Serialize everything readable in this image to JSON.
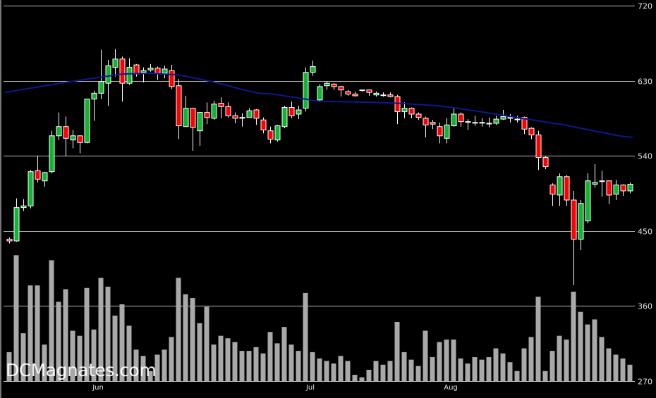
{
  "watermark": "DCMagnates.com",
  "colors": {
    "background": "#000000",
    "up": "#10b530",
    "down": "#ff0000",
    "wick": "#ffffff",
    "ma_line": "#0a1a8c",
    "volume": "#a9a9a9",
    "grid": "#bdbdbd"
  },
  "chart_data": {
    "type": "candlestick",
    "title": "",
    "ylim": [
      270,
      720
    ],
    "y_ticks": [
      720,
      630,
      540,
      450,
      360,
      270
    ],
    "y_axis_position": "right",
    "grid": true,
    "x_ticks": [
      "Jun",
      "Jul",
      "Aug"
    ],
    "ohlc": [
      [
        440,
        442,
        435,
        438
      ],
      [
        438,
        489,
        437,
        478
      ],
      [
        478,
        488,
        474,
        480
      ],
      [
        480,
        523,
        477,
        521
      ],
      [
        522,
        540,
        508,
        512
      ],
      [
        510,
        521,
        503,
        520
      ],
      [
        521,
        570,
        519,
        564
      ],
      [
        564,
        592,
        559,
        575
      ],
      [
        575,
        587,
        540,
        561
      ],
      [
        559,
        571,
        549,
        564
      ],
      [
        564,
        564,
        543,
        556
      ],
      [
        556,
        608,
        555,
        608
      ],
      [
        608,
        618,
        582,
        615
      ],
      [
        615,
        667,
        608,
        629
      ],
      [
        627,
        655,
        600,
        648
      ],
      [
        646,
        668,
        635,
        656
      ],
      [
        656,
        659,
        605,
        627
      ],
      [
        627,
        657,
        625,
        646
      ],
      [
        649,
        650,
        635,
        638
      ],
      [
        640,
        646,
        628,
        642
      ],
      [
        643,
        650,
        641,
        645
      ],
      [
        645,
        647,
        631,
        639
      ],
      [
        639,
        648,
        633,
        644
      ],
      [
        642,
        649,
        620,
        623
      ],
      [
        624,
        632,
        560,
        576
      ],
      [
        575,
        612,
        575,
        597
      ],
      [
        597,
        597,
        546,
        574
      ],
      [
        570,
        592,
        552,
        592
      ],
      [
        592,
        604,
        578,
        586
      ],
      [
        585,
        606,
        583,
        602
      ],
      [
        603,
        610,
        585,
        599
      ],
      [
        599,
        604,
        586,
        588
      ],
      [
        588,
        592,
        579,
        585
      ],
      [
        585,
        591,
        575,
        586
      ],
      [
        586,
        597,
        586,
        594
      ],
      [
        595,
        596,
        577,
        585
      ],
      [
        583,
        586,
        567,
        571
      ],
      [
        570,
        575,
        555,
        560
      ],
      [
        559,
        577,
        557,
        576
      ],
      [
        575,
        600,
        573,
        598
      ],
      [
        598,
        605,
        585,
        588
      ],
      [
        590,
        600,
        584,
        595
      ],
      [
        597,
        646,
        593,
        640
      ],
      [
        640,
        654,
        636,
        647
      ],
      [
        607,
        626,
        606,
        623
      ],
      [
        624,
        629,
        619,
        627
      ],
      [
        626,
        627,
        619,
        623
      ],
      [
        623,
        624,
        611,
        619
      ],
      [
        617,
        619,
        612,
        614
      ],
      [
        614,
        617,
        611,
        612
      ],
      [
        619,
        619,
        617,
        619
      ],
      [
        619,
        619,
        612,
        616
      ],
      [
        613,
        617,
        611,
        615
      ],
      [
        613,
        616,
        611,
        613
      ],
      [
        613,
        616,
        610,
        611
      ],
      [
        611,
        613,
        578,
        593
      ],
      [
        593,
        604,
        585,
        597
      ],
      [
        597,
        598,
        585,
        590
      ],
      [
        590,
        592,
        583,
        586
      ],
      [
        585,
        587,
        562,
        577
      ],
      [
        580,
        583,
        572,
        578
      ],
      [
        575,
        580,
        555,
        564
      ],
      [
        561,
        585,
        555,
        577
      ],
      [
        576,
        598,
        575,
        590
      ],
      [
        590,
        592,
        575,
        581
      ],
      [
        581,
        584,
        571,
        581
      ],
      [
        580,
        588,
        576,
        580
      ],
      [
        580,
        585,
        575,
        580
      ],
      [
        579,
        586,
        574,
        579
      ],
      [
        579,
        588,
        577,
        584
      ],
      [
        584,
        595,
        583,
        587
      ],
      [
        586,
        590,
        580,
        585
      ],
      [
        584,
        588,
        580,
        584
      ],
      [
        586,
        587,
        566,
        572
      ],
      [
        573,
        574,
        560,
        565
      ],
      [
        565,
        570,
        523,
        538
      ],
      [
        538,
        540,
        524,
        527
      ],
      [
        505,
        507,
        480,
        494
      ],
      [
        493,
        519,
        480,
        515
      ],
      [
        515,
        517,
        480,
        487
      ],
      [
        487,
        498,
        385,
        440
      ],
      [
        440,
        487,
        427,
        483
      ],
      [
        462,
        519,
        459,
        510
      ],
      [
        506,
        530,
        502,
        508
      ],
      [
        510,
        522,
        491,
        510
      ],
      [
        510,
        510,
        482,
        493
      ],
      [
        494,
        511,
        487,
        505
      ],
      [
        505,
        506,
        492,
        498
      ],
      [
        498,
        508,
        495,
        506
      ]
    ],
    "moving_average": {
      "points": [
        [
          -0.6,
          616
        ],
        [
          8.7,
          629
        ],
        [
          16,
          638
        ],
        [
          20,
          639
        ],
        [
          24,
          637
        ],
        [
          28.7,
          629
        ],
        [
          30.7,
          625
        ],
        [
          32.7,
          620
        ],
        [
          35.4,
          615
        ],
        [
          37.4,
          614
        ],
        [
          42,
          608
        ],
        [
          44,
          605
        ],
        [
          46.7,
          605
        ],
        [
          52,
          604
        ],
        [
          55.4,
          603
        ],
        [
          60.7,
          600
        ],
        [
          62.7,
          598
        ],
        [
          66.7,
          593
        ],
        [
          72,
          586
        ],
        [
          78.7,
          577
        ],
        [
          86.4,
          564
        ],
        [
          88.4,
          562
        ]
      ]
    },
    "volume_relative": [
      23,
      100,
      38,
      76,
      76,
      29,
      96,
      63,
      73,
      40,
      36,
      74,
      41,
      82,
      75,
      52,
      61,
      44,
      25,
      20,
      8,
      21,
      25,
      35,
      82,
      69,
      66,
      46,
      59,
      29,
      36,
      34,
      31,
      24,
      24,
      27,
      22,
      39,
      30,
      43,
      29,
      24,
      70,
      23,
      18,
      16,
      14,
      20,
      16,
      5,
      3,
      9,
      16,
      13,
      16,
      47,
      23,
      17,
      12,
      40,
      19,
      31,
      33,
      33,
      18,
      14,
      19,
      17,
      19,
      26,
      22,
      15,
      8,
      26,
      35,
      67,
      8,
      24,
      36,
      33,
      71,
      55,
      45,
      49,
      35,
      26,
      21,
      18,
      13
    ]
  }
}
